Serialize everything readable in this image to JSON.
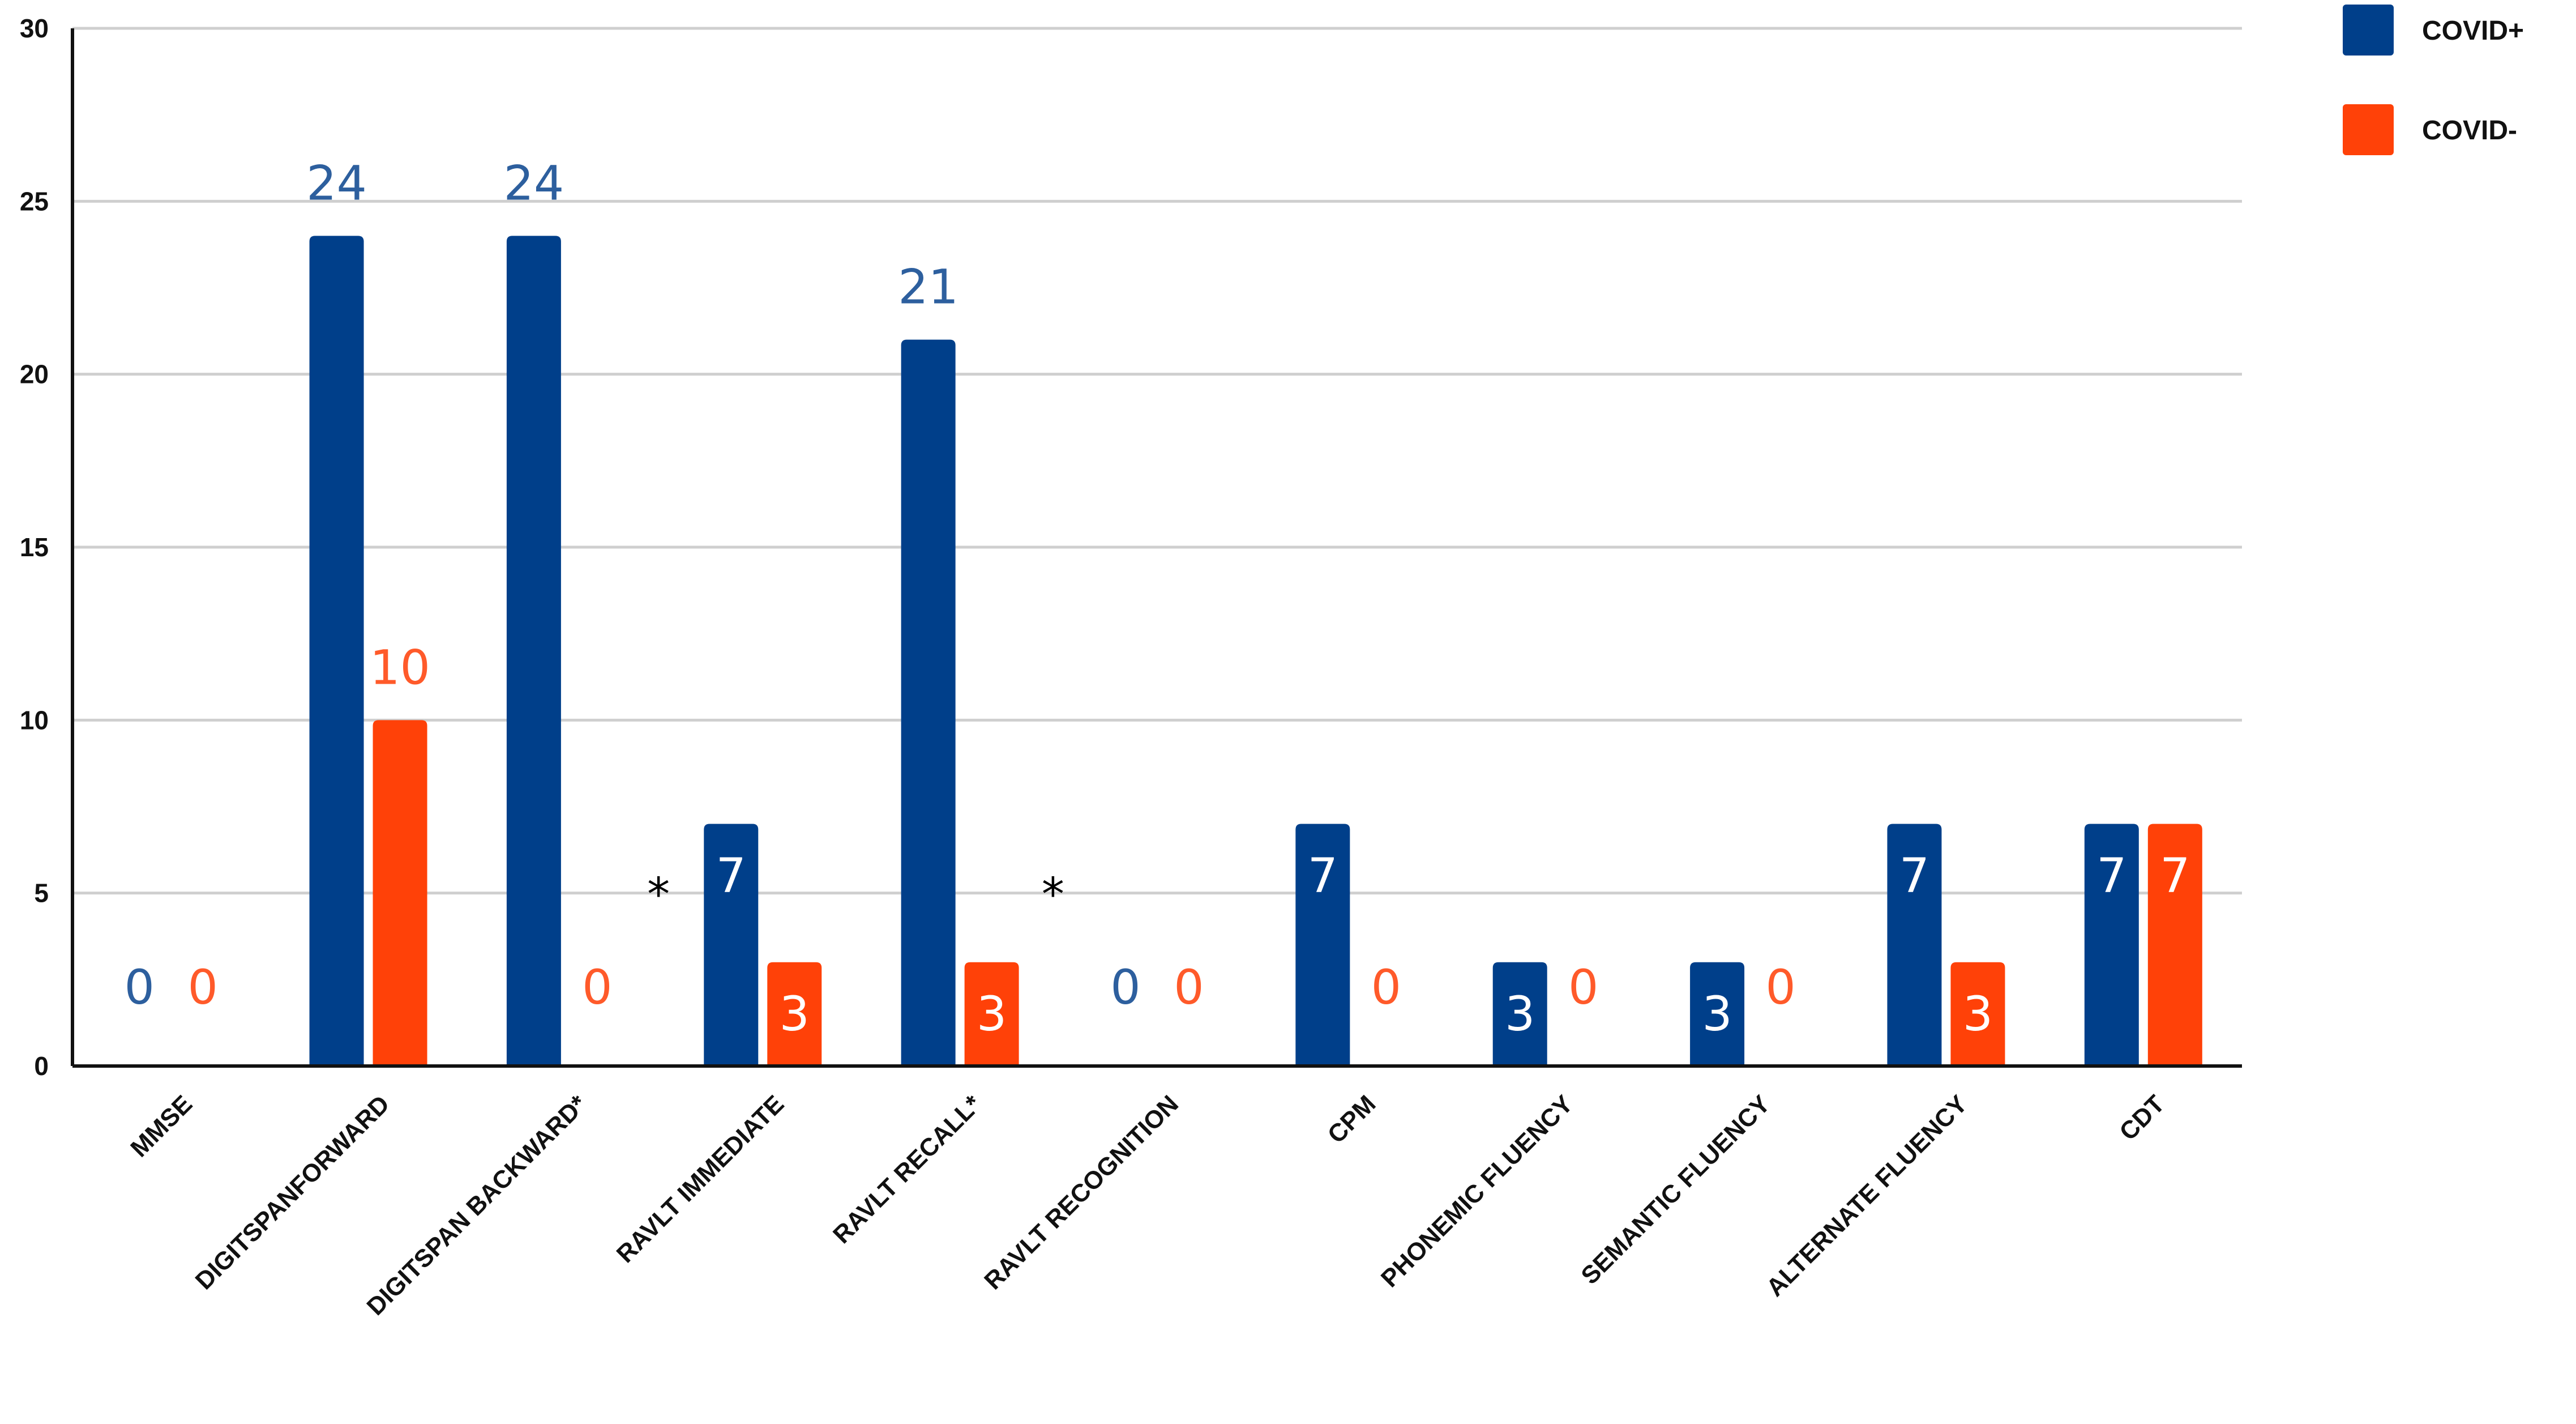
{
  "chart_data": {
    "type": "bar",
    "title": "",
    "xlabel": "",
    "ylabel": "",
    "ylim": [
      0,
      30
    ],
    "yticks": [
      "0",
      "5",
      "10",
      "15",
      "20",
      "25",
      "30"
    ],
    "grid": true,
    "legend_position": "top-right",
    "categories": [
      "MMSE",
      "DIGITSPANFORWARD",
      "DIGITSPAN BACKWARD*",
      "RAVLT IMMEDIATE",
      "RAVLT RECALL*",
      "RAVLT RECOGNITION",
      "CPM",
      "PHONEMIC FLUENCY",
      "SEMANTIC FLUENCY",
      "ALTERNATE FLUENCY",
      "CDT"
    ],
    "series": [
      {
        "name": "COVID+",
        "color": "#003f8a",
        "label_color": "#2d5f9e",
        "values": [
          0,
          24,
          24,
          7,
          21,
          0,
          7,
          3,
          3,
          7,
          7
        ],
        "data_labels": [
          "0",
          "24",
          "24",
          "7",
          "21",
          "0",
          "7",
          "3",
          "3",
          "7",
          "7"
        ]
      },
      {
        "name": "COVID-",
        "color": "#ff4108",
        "label_color": "#ff5a2a",
        "values": [
          0,
          10,
          0,
          3,
          3,
          0,
          0,
          0,
          0,
          3,
          7
        ],
        "data_labels": [
          "0",
          "10",
          "0",
          "3",
          "3",
          "0",
          "0",
          "0",
          "0",
          "3",
          "7"
        ]
      }
    ],
    "annotations": [
      {
        "text": "*",
        "category_index": 2
      },
      {
        "text": "*",
        "category_index": 4
      }
    ]
  }
}
